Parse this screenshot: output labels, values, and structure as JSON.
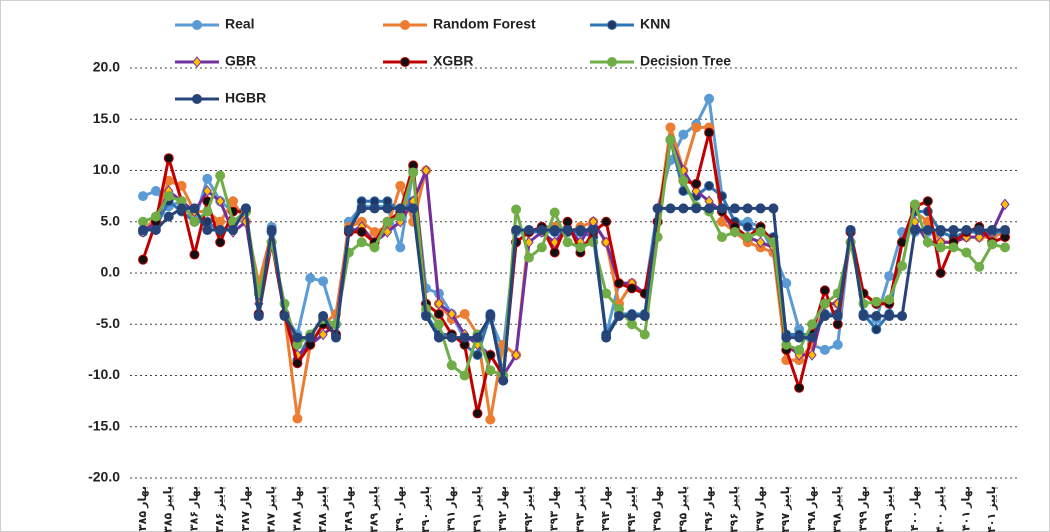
{
  "chart_data": {
    "type": "line",
    "categories": [
      "بهار ۱۳۸۵",
      null,
      "پاییز ۱۳۸۵",
      null,
      "بهار ۱۳۸۶",
      null,
      "پاییز ۱۳۸۶",
      null,
      "بهار ۱۳۸۷",
      null,
      "پاییز ۱۳۸۷",
      null,
      "بهار ۱۳۸۸",
      null,
      "پاییز ۱۳۸۸",
      null,
      "بهار ۱۳۸۹",
      null,
      "پاییز ۱۳۸۹",
      null,
      "بهار ۱۳۹۰",
      null,
      "پاییز ۱۳۹۰",
      null,
      "بهار ۱۳۹۱",
      null,
      "پاییز ۱۳۹۱",
      null,
      "بهار ۱۳۹۲",
      null,
      "پاییز ۱۳۹۲",
      null,
      "بهار ۱۳۹۳",
      null,
      "پاییز ۱۳۹۳",
      null,
      "بهار ۱۳۹۴",
      null,
      "پاییز ۱۳۹۴",
      null,
      "بهار ۱۳۹۵",
      null,
      "پاییز ۱۳۹۵",
      null,
      "بهار ۱۳۹۶",
      null,
      "پاییز ۱۳۹۶",
      null,
      "بهار ۱۳۹۷",
      null,
      "پاییز ۱۳۹۷",
      null,
      "بهار ۱۳۹۸",
      null,
      "پاییز ۱۳۹۸",
      null,
      "بهار ۱۳۹۹",
      null,
      "پاییز ۱۳۹۹",
      null,
      "بهار ۱۴۰۰",
      null,
      "پاییز ۱۴۰۰",
      null,
      "بهار ۱۴۰۱",
      null,
      "پاییز ۱۴۰۱",
      null
    ],
    "series": [
      {
        "name": "Real",
        "color": "#5b9bd5",
        "marker_color": "#5b9bd5",
        "values": [
          7.5,
          8,
          6.5,
          7,
          5,
          9.2,
          7,
          6,
          6.3,
          -4,
          4.5,
          -4,
          -6,
          -0.5,
          -0.8,
          -5,
          5,
          6.5,
          6.5,
          6.5,
          2.5,
          10,
          -1.5,
          -2,
          -4,
          -6.5,
          -6.5,
          -4.5,
          -7.5,
          4,
          4,
          4.5,
          4.5,
          4,
          4,
          4.5,
          -6,
          -1,
          -1,
          -2,
          6.3,
          11,
          13.5,
          14.5,
          17,
          7.5,
          5,
          5,
          4.5,
          2,
          -1,
          -5.5,
          -7,
          -7.5,
          -7,
          4,
          -4,
          -4.5,
          -0.3,
          4,
          4,
          4,
          4,
          3.5,
          4,
          4,
          3.5,
          4
        ]
      },
      {
        "name": "Random Forest",
        "color": "#ed7d31",
        "marker_color": "#ed7d31",
        "values": [
          4,
          5.5,
          9,
          8.5,
          6,
          6,
          5,
          7,
          5,
          -1,
          4,
          -4,
          -14.2,
          -7,
          -5,
          -4,
          4.5,
          5,
          4,
          4.5,
          8.5,
          5,
          10,
          -3,
          -4.5,
          -4,
          -6,
          -14.3,
          -7,
          -8,
          4,
          4,
          4.5,
          4,
          4.5,
          5,
          3,
          -3,
          -1,
          -2,
          5,
          14.2,
          10,
          14.2,
          14.2,
          5,
          4,
          3,
          2.5,
          2,
          -8.5,
          -8.5,
          -7,
          -3,
          -3,
          3,
          -2,
          -3,
          -3,
          3,
          6,
          5,
          3,
          3,
          3.5,
          3.5,
          3.5,
          4
        ]
      },
      {
        "name": "KNN",
        "color": "#2e75b6",
        "marker_color": "#1f3864",
        "values": [
          4,
          4.5,
          7,
          6,
          5,
          5,
          4,
          5,
          6,
          -4,
          4,
          -4,
          -8.5,
          -6,
          -4.5,
          -6,
          4,
          7,
          7,
          7,
          6,
          7,
          -4,
          -6,
          -6,
          -7,
          -8,
          -4,
          -10,
          3,
          4,
          4,
          4,
          4,
          4,
          3.5,
          -6,
          -4,
          -4,
          -4,
          5,
          13,
          8,
          7.5,
          8.5,
          7.5,
          5,
          4.5,
          4,
          3.5,
          -6,
          -6,
          -6,
          -4,
          -4,
          4,
          -4,
          -5.5,
          -4,
          3,
          6,
          6,
          4,
          3.5,
          4,
          4,
          4,
          4
        ]
      },
      {
        "name": "GBR",
        "color": "#7030a0",
        "marker_color": "#ffc000",
        "marker": "diamond",
        "values": [
          4,
          5,
          8,
          7,
          6,
          8,
          7,
          4,
          5,
          -3,
          4,
          -4,
          -8,
          -7,
          -6,
          -5,
          4,
          4.5,
          3,
          4,
          5,
          7,
          10,
          -3,
          -4,
          -6,
          -7,
          -8,
          -10,
          -8,
          3,
          4,
          3,
          4.5,
          3,
          5,
          3,
          -1,
          -1,
          -2,
          5,
          13,
          10,
          8,
          7,
          6,
          4,
          3.5,
          3,
          2.5,
          -7,
          -8,
          -8,
          -3,
          -3,
          3,
          -2,
          -3,
          -3,
          3,
          5,
          3,
          3,
          3,
          3.5,
          3.5,
          4,
          6.7
        ]
      },
      {
        "name": "XGBR",
        "color": "#c00000",
        "marker_color": "#111111",
        "values": [
          1.3,
          5,
          11.2,
          7,
          1.8,
          7,
          3,
          6,
          6,
          -4,
          3,
          -4,
          -8.8,
          -7,
          -5,
          -6,
          4,
          4,
          3,
          5,
          6,
          10.5,
          -3,
          -4,
          -6,
          -7,
          -13.7,
          -8,
          -10,
          3,
          4,
          4.5,
          2,
          5,
          2,
          4,
          5,
          -1,
          -1.5,
          -2,
          5,
          13,
          9,
          8.7,
          13.7,
          6,
          4.5,
          3.5,
          4.5,
          3,
          -7.5,
          -11.2,
          -6,
          -1.7,
          -5,
          4,
          -2,
          -3,
          -3,
          3,
          6.5,
          7,
          0,
          3,
          4,
          4.5,
          3,
          3.5
        ]
      },
      {
        "name": "Decision Tree",
        "color": "#70ad47",
        "marker_color": "#70ad47",
        "values": [
          5,
          5.5,
          7.5,
          7,
          5,
          6,
          9.5,
          5,
          6,
          -2,
          3,
          -3,
          -7,
          -6,
          -4.5,
          -5,
          2,
          3,
          2.5,
          5,
          5.5,
          9.8,
          -3.5,
          -5,
          -9,
          -10,
          -6,
          -9.5,
          -10,
          6.2,
          1.5,
          2.5,
          5.9,
          3,
          2.5,
          3,
          -2,
          -3.5,
          -5,
          -6,
          3.5,
          13,
          9,
          6.5,
          6,
          3.5,
          4,
          3.5,
          4,
          3,
          -7,
          -7.5,
          -5,
          -3,
          -2,
          3,
          -3,
          -2.8,
          -2.6,
          0.7,
          6.7,
          3,
          2.5,
          2.5,
          2,
          0.6,
          2.8,
          2.5
        ]
      },
      {
        "name": "HGBR",
        "color": "#264478",
        "marker_color": "#264478",
        "values": [
          4.2,
          4.2,
          5.5,
          6.3,
          6.3,
          4.2,
          4.2,
          4.2,
          6.3,
          -4.2,
          4.2,
          -4.2,
          -6.3,
          -6.3,
          -4.2,
          -6.3,
          4.2,
          6.3,
          6.3,
          6.3,
          6.3,
          6.3,
          -4.2,
          -6.3,
          -6.3,
          -6.3,
          -6.3,
          -4.2,
          -10.5,
          4.2,
          4.2,
          4.2,
          4.2,
          4.2,
          4.2,
          4.2,
          -6.3,
          -4.2,
          -4.2,
          -4.2,
          6.3,
          6.3,
          6.3,
          6.3,
          6.3,
          6.3,
          6.3,
          6.3,
          6.3,
          6.3,
          -6.3,
          -6.3,
          -6.3,
          -4.2,
          -4.2,
          4.2,
          -4.2,
          -4.2,
          -4.2,
          -4.2,
          4.2,
          4.2,
          4.2,
          4.2,
          4.2,
          4.2,
          4.2,
          4.2
        ]
      }
    ],
    "ylim": [
      -20,
      20
    ],
    "yticks": [
      {
        "value": -20,
        "label": "-20.0"
      },
      {
        "value": -15,
        "label": "-15.0"
      },
      {
        "value": -10,
        "label": "-10.0"
      },
      {
        "value": -5,
        "label": "-5.0"
      },
      {
        "value": 0,
        "label": "0.0"
      },
      {
        "value": 5,
        "label": "5.0"
      },
      {
        "value": 10,
        "label": "10.0"
      },
      {
        "value": 15,
        "label": "15.0"
      },
      {
        "value": 20,
        "label": "20.0"
      }
    ],
    "grid": true
  }
}
